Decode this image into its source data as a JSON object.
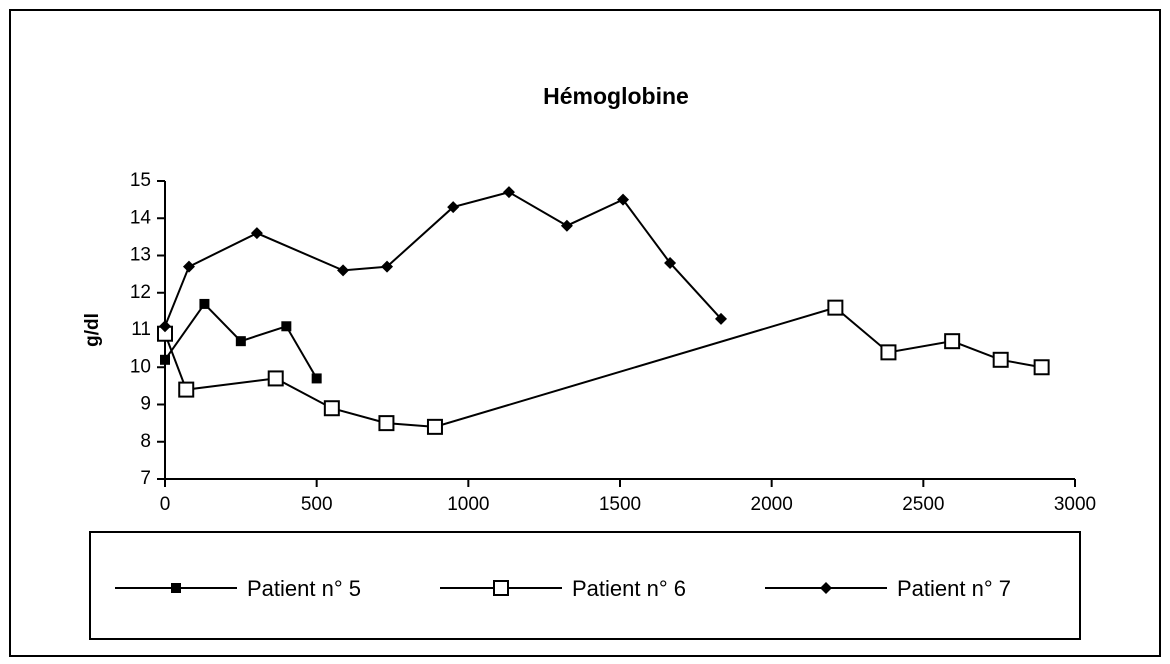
{
  "chart_data": {
    "type": "line",
    "title": "Hémoglobine",
    "ylabel": "g/dl",
    "xlim": [
      0,
      3000
    ],
    "xticks": [
      0,
      500,
      1000,
      1500,
      2000,
      2500,
      3000
    ],
    "ylim": [
      7,
      15
    ],
    "yticks": [
      7,
      8,
      9,
      10,
      11,
      12,
      13,
      14,
      15
    ],
    "grid": false,
    "legend": "bottom",
    "series": [
      {
        "name": "Patient n° 5",
        "color": "#000000",
        "marker": "filled-square",
        "x": [
          0,
          130,
          250,
          400,
          500
        ],
        "values": [
          10.2,
          11.7,
          10.7,
          11.1,
          9.7
        ]
      },
      {
        "name": "Patient n° 6",
        "color": "#000000",
        "marker": "open-square",
        "x": [
          0,
          70,
          365,
          550,
          730,
          890,
          2210,
          2385,
          2595,
          2755,
          2890
        ],
        "values": [
          10.9,
          9.4,
          9.7,
          8.9,
          8.5,
          8.4,
          11.6,
          10.4,
          10.7,
          10.2,
          10.0
        ]
      },
      {
        "name": "Patient n° 7",
        "color": "#000000",
        "marker": "diamond",
        "x": [
          0,
          79,
          303,
          587,
          732,
          950,
          1134,
          1325,
          1510,
          1665,
          1833
        ],
        "values": [
          11.1,
          12.7,
          13.6,
          12.6,
          12.7,
          14.3,
          14.7,
          13.8,
          14.5,
          12.8,
          11.3
        ]
      }
    ]
  }
}
